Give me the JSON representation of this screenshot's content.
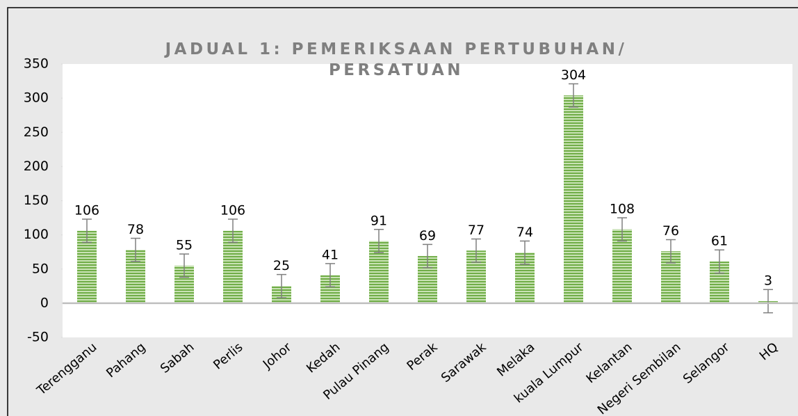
{
  "chart_data": {
    "type": "bar",
    "title": "JADUAL 1: PEMERIKSAAN PERTUBUHAN/ PERSATUAN",
    "categories": [
      "Terengganu",
      "Pahang",
      "Sabah",
      "Perlis",
      "Johor",
      "Kedah",
      "Pulau Pinang",
      "Perak",
      "Sarawak",
      "Melaka",
      "kuala Lumpur",
      "Kelantan",
      "Negeri Sembilan",
      "Selangor",
      "HQ"
    ],
    "values": [
      106,
      78,
      55,
      106,
      25,
      41,
      91,
      69,
      77,
      74,
      304,
      108,
      76,
      61,
      3
    ],
    "errors": [
      17,
      17,
      17,
      17,
      17,
      17,
      17,
      17,
      17,
      17,
      17,
      17,
      17,
      17,
      17
    ],
    "color": "#70ad47",
    "ylim": [
      -50,
      350
    ],
    "yticks": [
      {
        "value": -50,
        "label": "-50"
      },
      0,
      50,
      100,
      150,
      200,
      250,
      300,
      350
    ]
  }
}
